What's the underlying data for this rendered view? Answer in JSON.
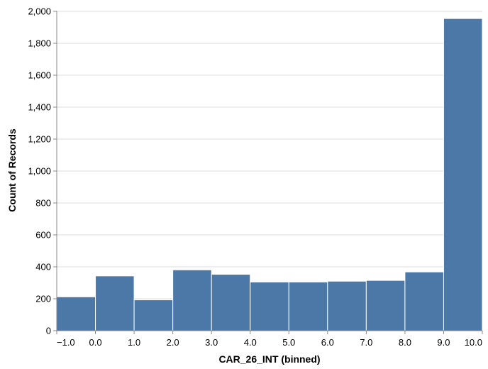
{
  "chart_data": {
    "type": "bar",
    "xlabel": "CAR_26_INT (binned)",
    "ylabel": "Count of Records",
    "xlim": [
      -1.0,
      10.0
    ],
    "ylim": [
      0,
      2000
    ],
    "grid": true,
    "x_ticks": [
      "−1.0",
      "0.0",
      "1.0",
      "2.0",
      "3.0",
      "4.0",
      "5.0",
      "6.0",
      "7.0",
      "8.0",
      "9.0",
      "10.0"
    ],
    "y_ticks": [
      "0",
      "200",
      "400",
      "600",
      "800",
      "1,000",
      "1,200",
      "1,400",
      "1,600",
      "1,800",
      "2,000"
    ],
    "bins": [
      {
        "x0": -1.0,
        "x1": 0.0,
        "count": 212
      },
      {
        "x0": 0.0,
        "x1": 1.0,
        "count": 343
      },
      {
        "x0": 1.0,
        "x1": 2.0,
        "count": 193
      },
      {
        "x0": 2.0,
        "x1": 3.0,
        "count": 381
      },
      {
        "x0": 3.0,
        "x1": 4.0,
        "count": 353
      },
      {
        "x0": 4.0,
        "x1": 5.0,
        "count": 305
      },
      {
        "x0": 5.0,
        "x1": 6.0,
        "count": 305
      },
      {
        "x0": 6.0,
        "x1": 7.0,
        "count": 310
      },
      {
        "x0": 7.0,
        "x1": 8.0,
        "count": 315
      },
      {
        "x0": 8.0,
        "x1": 9.0,
        "count": 368
      },
      {
        "x0": 9.0,
        "x1": 10.0,
        "count": 1955
      }
    ],
    "bar_color": "#4c78a8"
  }
}
